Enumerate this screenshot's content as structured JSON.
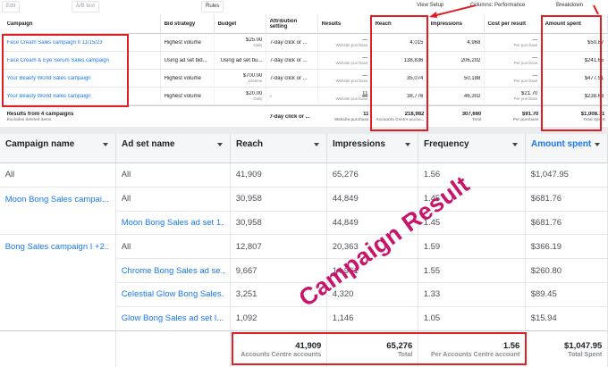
{
  "toolbar": {
    "edit": "Edit",
    "ab_test": "A/B test",
    "rules": "Rules",
    "view_setup": "View Setup",
    "columns": "Columns: Performance",
    "breakdown": "Breakdown"
  },
  "top_table": {
    "headers": [
      "Campaign",
      "Bid strategy",
      "Budget",
      "Attribution setting",
      "Results",
      "Reach",
      "Impressions",
      "Cost per result",
      "Amount spent"
    ],
    "rows": [
      [
        "Face Cream Sales campaign II 11/15/23",
        "Highest volume",
        {
          "text": "$25.00",
          "sub": "Daily"
        },
        "7-day click or ...",
        {
          "text": "—",
          "sub": "Website purchase"
        },
        "4,015",
        "4,968",
        {
          "text": "—",
          "sub": "Per purchase"
        },
        "$50.87"
      ],
      [
        "Face Cream & Eye Serum Sales campaign",
        "Using ad set bid...",
        "Using ad set bu...",
        "7-day click or ...",
        {
          "text": "—",
          "sub": "Website purchase"
        },
        "138,836",
        "206,202",
        {
          "text": "—",
          "sub": "Per purchase"
        },
        "$241.65"
      ],
      [
        "Your Beauty World Sales campaign",
        "Highest volume",
        {
          "text": "$700.00",
          "sub": "Lifetime"
        },
        "7-day click or ...",
        {
          "text": "—",
          "sub": "Website purchase"
        },
        "35,074",
        "50,188",
        {
          "text": "—",
          "sub": "Per purchase"
        },
        "$477.51"
      ],
      [
        "Your Beauty World Sales campaign",
        "Highest volume",
        {
          "text": "$20.00",
          "sub": "Daily"
        },
        "-",
        {
          "text": "11",
          "sub": "Website purchase"
        },
        "38,776",
        "46,302",
        {
          "text": "$21.70",
          "sub": "Per purchase"
        },
        "$238.68"
      ]
    ],
    "summary": [
      {
        "text": "Results from 4 campaigns",
        "sub": "Excludes deleted items"
      },
      null,
      null,
      "7-day click or ...",
      {
        "text": "11",
        "sub": "Website purchase"
      },
      {
        "text": "218,982",
        "sub": "Accounts Centre accou..."
      },
      {
        "text": "307,660",
        "sub": "Total"
      },
      {
        "text": "$91.70",
        "sub": "Per purchase"
      },
      {
        "text": "$1,008.71",
        "sub": "Total Spent"
      }
    ]
  },
  "bottom_table": {
    "headers": [
      "Campaign name",
      "Ad set name",
      "Reach",
      "Impressions",
      "Frequency",
      "Amount spent"
    ],
    "rows": [
      [
        "All",
        "All",
        "41,909",
        "65,276",
        "1.56",
        "$1,047.95"
      ],
      [
        "Moon Bong Sales campai...",
        "All",
        "30,958",
        "44,849",
        "1.45",
        "$681.76"
      ],
      [
        null,
        "Moon Bong Sales ad set 1...",
        "30,958",
        "44,849",
        "1.45",
        "$681.76"
      ],
      [
        "Bong Sales campaign I +2...",
        "All",
        "12,807",
        "20,363",
        "1.59",
        "$366.19"
      ],
      [
        null,
        "Chrome Bong Sales ad se...",
        "9,667",
        "14,961",
        "1.55",
        "$260.80"
      ],
      [
        null,
        "Celestial Glow Bong Sales...",
        "3,251",
        "4,320",
        "1.33",
        "$89.45"
      ],
      [
        null,
        "Glow Bong Sales ad set I...",
        "1,092",
        "1,146",
        "1.05",
        "$15.94"
      ]
    ],
    "footer": [
      null,
      null,
      {
        "text": "41,909",
        "sub": "Accounts Centre accounts"
      },
      {
        "text": "65,276",
        "sub": "Total"
      },
      {
        "text": "1.56",
        "sub": "Per Accounts Centre account"
      },
      {
        "text": "$1,047.95",
        "sub": "Total Spent"
      }
    ]
  },
  "overlay_text": "Campaign Result"
}
